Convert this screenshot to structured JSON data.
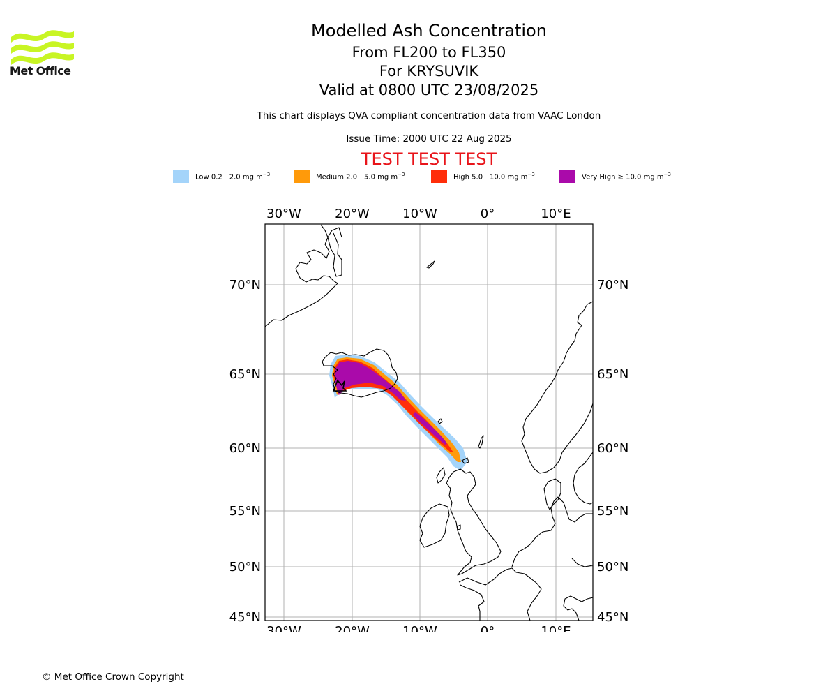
{
  "logo": {
    "text": "Met Office",
    "color": "#c8f524"
  },
  "header": {
    "title": "Modelled Ash Concentration",
    "flight_levels": "From FL200 to FL350",
    "volcano": "For KRYSUVIK",
    "valid": "Valid at 0800 UTC 23/08/2025",
    "description": "This chart displays QVA compliant concentration data from VAAC London",
    "issue_time": "Issue Time: 2000 UTC 22 Aug 2025",
    "test_banner": "TEST TEST TEST"
  },
  "legend": [
    {
      "label": "Low 0.2 - 2.0 mg m",
      "unit_exp": "−3",
      "color": "#a4d4fa"
    },
    {
      "label": "Medium 2.0 - 5.0 mg m",
      "unit_exp": "−3",
      "color": "#ff9a0a"
    },
    {
      "label": "High 5.0 - 10.0 mg m",
      "unit_exp": "−3",
      "color": "#ff2e0a"
    },
    {
      "label": "Very High  ≥  10.0 mg m",
      "unit_exp": "−3",
      "color": "#aa0aaa"
    }
  ],
  "map": {
    "lon_range": [
      -33,
      15
    ],
    "lat_range": [
      45,
      73.4
    ],
    "lon_ticks": [
      "30°W",
      "20°W",
      "10°W",
      "0°",
      "10°E"
    ],
    "lat_ticks": [
      "70°N",
      "65°N",
      "60°N",
      "55°N",
      "50°N",
      "45°N"
    ],
    "grid": true,
    "grid_color": "#b0b0b0"
  },
  "footer": {
    "copyright": "© Met Office Crown Copyright"
  }
}
